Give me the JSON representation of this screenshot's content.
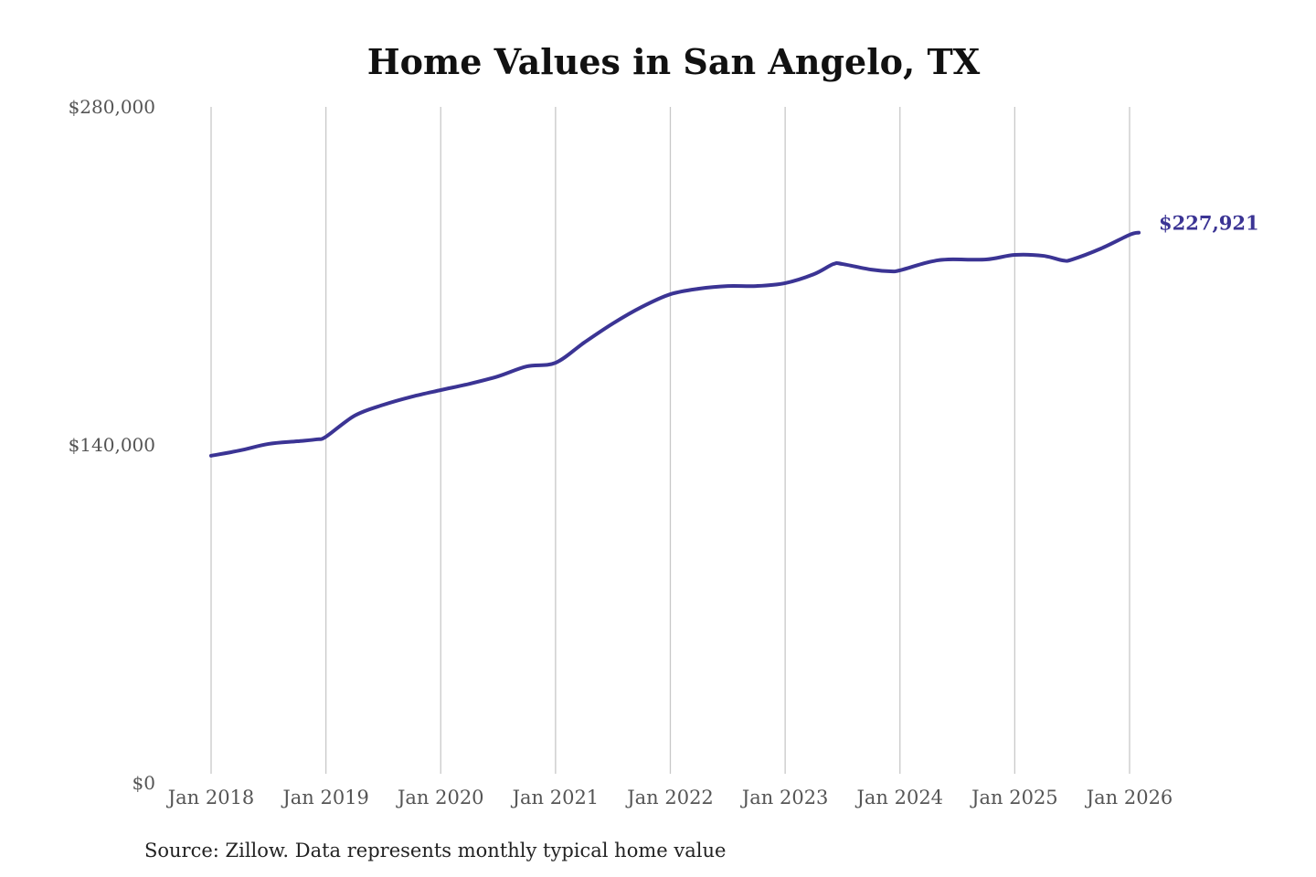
{
  "chart_data": {
    "type": "line",
    "title": "Home Values in San Angelo, TX",
    "source": "Source: Zillow. Data represents monthly typical home value",
    "xlabel": "",
    "ylabel": "",
    "ylim": [
      0,
      280000
    ],
    "xlim": [
      2018.0,
      2026.1
    ],
    "y_ticks": [
      {
        "value": 0,
        "label": "$0"
      },
      {
        "value": 140000,
        "label": "$140,000"
      },
      {
        "value": 280000,
        "label": "$280,000"
      }
    ],
    "x_ticks": [
      {
        "value": 2018,
        "label": "Jan 2018"
      },
      {
        "value": 2019,
        "label": "Jan 2019"
      },
      {
        "value": 2020,
        "label": "Jan 2020"
      },
      {
        "value": 2021,
        "label": "Jan 2021"
      },
      {
        "value": 2022,
        "label": "Jan 2022"
      },
      {
        "value": 2023,
        "label": "Jan 2023"
      },
      {
        "value": 2024,
        "label": "Jan 2024"
      },
      {
        "value": 2025,
        "label": "Jan 2025"
      },
      {
        "value": 2026,
        "label": "Jan 2026"
      }
    ],
    "grid": "vertical",
    "line_color": "#3b3494",
    "end_label": "$227,921",
    "series": [
      {
        "name": "Typical home value",
        "x": [
          2018.0,
          2018.25,
          2018.5,
          2018.75,
          2018.92,
          2019.0,
          2019.25,
          2019.5,
          2019.75,
          2020.0,
          2020.25,
          2020.5,
          2020.75,
          2021.0,
          2021.25,
          2021.5,
          2021.75,
          2022.0,
          2022.25,
          2022.5,
          2022.75,
          2023.0,
          2023.25,
          2023.42,
          2023.5,
          2023.75,
          2023.92,
          2024.0,
          2024.25,
          2024.42,
          2024.75,
          2025.0,
          2025.25,
          2025.42,
          2025.5,
          2025.75,
          2026.0,
          2026.08
        ],
        "values": [
          135500,
          137700,
          140400,
          141500,
          142300,
          143400,
          152100,
          156600,
          160000,
          162700,
          165300,
          168400,
          172500,
          174000,
          182400,
          190300,
          197100,
          202400,
          204700,
          205800,
          205800,
          207000,
          210700,
          214900,
          214900,
          212600,
          211900,
          212300,
          215700,
          216800,
          216800,
          218700,
          218300,
          216400,
          216800,
          221300,
          227000,
          227921
        ]
      }
    ]
  }
}
